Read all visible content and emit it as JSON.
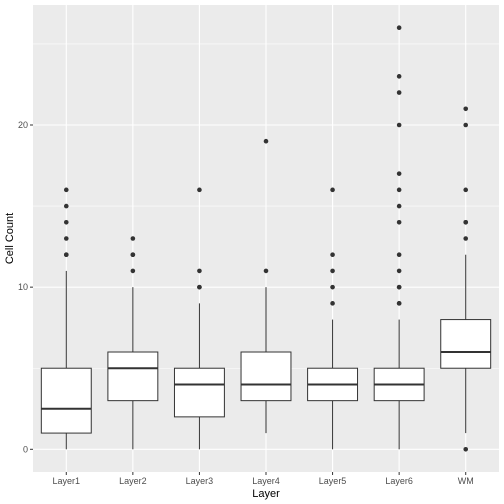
{
  "chart_data": {
    "type": "box",
    "xlabel": "Layer",
    "ylabel": "Cell Count",
    "ylim": [
      -1.4,
      27.4
    ],
    "y_ticks": [
      0,
      10,
      20
    ],
    "y_tick_labels": [
      "0",
      "10",
      "20"
    ],
    "grid": true,
    "categories": [
      "Layer1",
      "Layer2",
      "Layer3",
      "Layer4",
      "Layer5",
      "Layer6",
      "WM"
    ],
    "boxes": [
      {
        "category": "Layer1",
        "q1": 1,
        "median": 2.5,
        "q3": 5,
        "whisker_low": 0,
        "whisker_high": 11,
        "outliers": [
          12,
          12,
          13,
          14,
          15,
          16
        ]
      },
      {
        "category": "Layer2",
        "q1": 3,
        "median": 5,
        "q3": 6,
        "whisker_low": 0,
        "whisker_high": 10,
        "outliers": [
          11,
          12,
          12,
          13
        ]
      },
      {
        "category": "Layer3",
        "q1": 2,
        "median": 4,
        "q3": 5,
        "whisker_low": 0,
        "whisker_high": 9,
        "outliers": [
          10,
          10,
          11,
          16
        ]
      },
      {
        "category": "Layer4",
        "q1": 3,
        "median": 4,
        "q3": 6,
        "whisker_low": 1,
        "whisker_high": 10,
        "outliers": [
          11,
          19
        ]
      },
      {
        "category": "Layer5",
        "q1": 3,
        "median": 4,
        "q3": 5,
        "whisker_low": 0,
        "whisker_high": 8,
        "outliers": [
          9,
          10,
          11,
          12,
          16
        ]
      },
      {
        "category": "Layer6",
        "q1": 3,
        "median": 4,
        "q3": 5,
        "whisker_low": 0,
        "whisker_high": 8,
        "outliers": [
          9,
          9,
          10,
          10,
          11,
          12,
          14,
          15,
          16,
          17,
          20,
          22,
          23,
          26
        ]
      },
      {
        "category": "WM",
        "q1": 5,
        "median": 6,
        "q3": 8,
        "whisker_low": 1,
        "whisker_high": 12,
        "outliers": [
          0,
          13,
          14,
          14,
          16,
          20,
          21
        ]
      }
    ],
    "colors": {
      "panel_background": "#ebebeb",
      "grid_major": "#ffffff",
      "box_fill": "#ffffff",
      "box_stroke": "#333333",
      "outlier": "#333333",
      "tick_text": "#4d4d4d",
      "title_text": "#000000"
    }
  }
}
